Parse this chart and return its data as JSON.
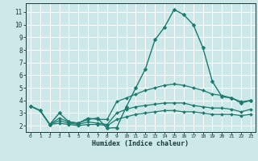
{
  "xlabel": "Humidex (Indice chaleur)",
  "bg_color": "#cce8e8",
  "grid_color": "#ffffff",
  "line_color": "#1a7a6e",
  "xlim": [
    -0.5,
    23.5
  ],
  "ylim": [
    1.5,
    11.7
  ],
  "xticks": [
    0,
    1,
    2,
    3,
    4,
    5,
    6,
    7,
    8,
    9,
    10,
    11,
    12,
    13,
    14,
    15,
    16,
    17,
    18,
    19,
    20,
    21,
    22,
    23
  ],
  "yticks": [
    2,
    3,
    4,
    5,
    6,
    7,
    8,
    9,
    10,
    11
  ],
  "lines": [
    {
      "x": [
        0,
        1,
        2,
        3,
        4,
        5,
        6,
        7,
        8,
        9,
        10,
        11,
        12,
        13,
        14,
        15,
        16,
        17,
        18,
        19,
        20,
        21,
        22,
        23
      ],
      "y": [
        3.55,
        3.2,
        2.1,
        3.0,
        2.3,
        2.2,
        2.5,
        2.6,
        1.8,
        1.85,
        3.5,
        5.0,
        6.5,
        8.8,
        9.8,
        11.2,
        10.8,
        10.0,
        8.2,
        5.5,
        4.3,
        4.2,
        3.8,
        4.0
      ],
      "markersize": 2.5,
      "linewidth": 1.0
    },
    {
      "x": [
        0,
        1,
        2,
        3,
        4,
        5,
        6,
        7,
        8,
        9,
        10,
        11,
        12,
        13,
        14,
        15,
        16,
        17,
        18,
        19,
        20,
        21,
        22,
        23
      ],
      "y": [
        3.55,
        3.2,
        2.1,
        2.6,
        2.3,
        2.2,
        2.6,
        2.5,
        2.5,
        3.9,
        4.2,
        4.5,
        4.8,
        5.0,
        5.2,
        5.3,
        5.2,
        5.0,
        4.8,
        4.5,
        4.4,
        4.2,
        3.9,
        4.0
      ],
      "markersize": 2.0,
      "linewidth": 0.9
    },
    {
      "x": [
        0,
        1,
        2,
        3,
        4,
        5,
        6,
        7,
        8,
        9,
        10,
        11,
        12,
        13,
        14,
        15,
        16,
        17,
        18,
        19,
        20,
        21,
        22,
        23
      ],
      "y": [
        3.55,
        3.2,
        2.1,
        2.4,
        2.2,
        2.1,
        2.3,
        2.2,
        2.1,
        3.0,
        3.3,
        3.5,
        3.6,
        3.7,
        3.8,
        3.8,
        3.8,
        3.6,
        3.5,
        3.4,
        3.4,
        3.3,
        3.1,
        3.3
      ],
      "markersize": 2.0,
      "linewidth": 0.9
    },
    {
      "x": [
        0,
        1,
        2,
        3,
        4,
        5,
        6,
        7,
        8,
        9,
        10,
        11,
        12,
        13,
        14,
        15,
        16,
        17,
        18,
        19,
        20,
        21,
        22,
        23
      ],
      "y": [
        3.55,
        3.2,
        2.1,
        2.2,
        2.1,
        2.0,
        2.1,
        2.1,
        2.0,
        2.5,
        2.7,
        2.9,
        3.0,
        3.1,
        3.2,
        3.2,
        3.1,
        3.1,
        3.0,
        2.9,
        2.9,
        2.9,
        2.8,
        2.9
      ],
      "markersize": 2.0,
      "linewidth": 0.9
    }
  ]
}
